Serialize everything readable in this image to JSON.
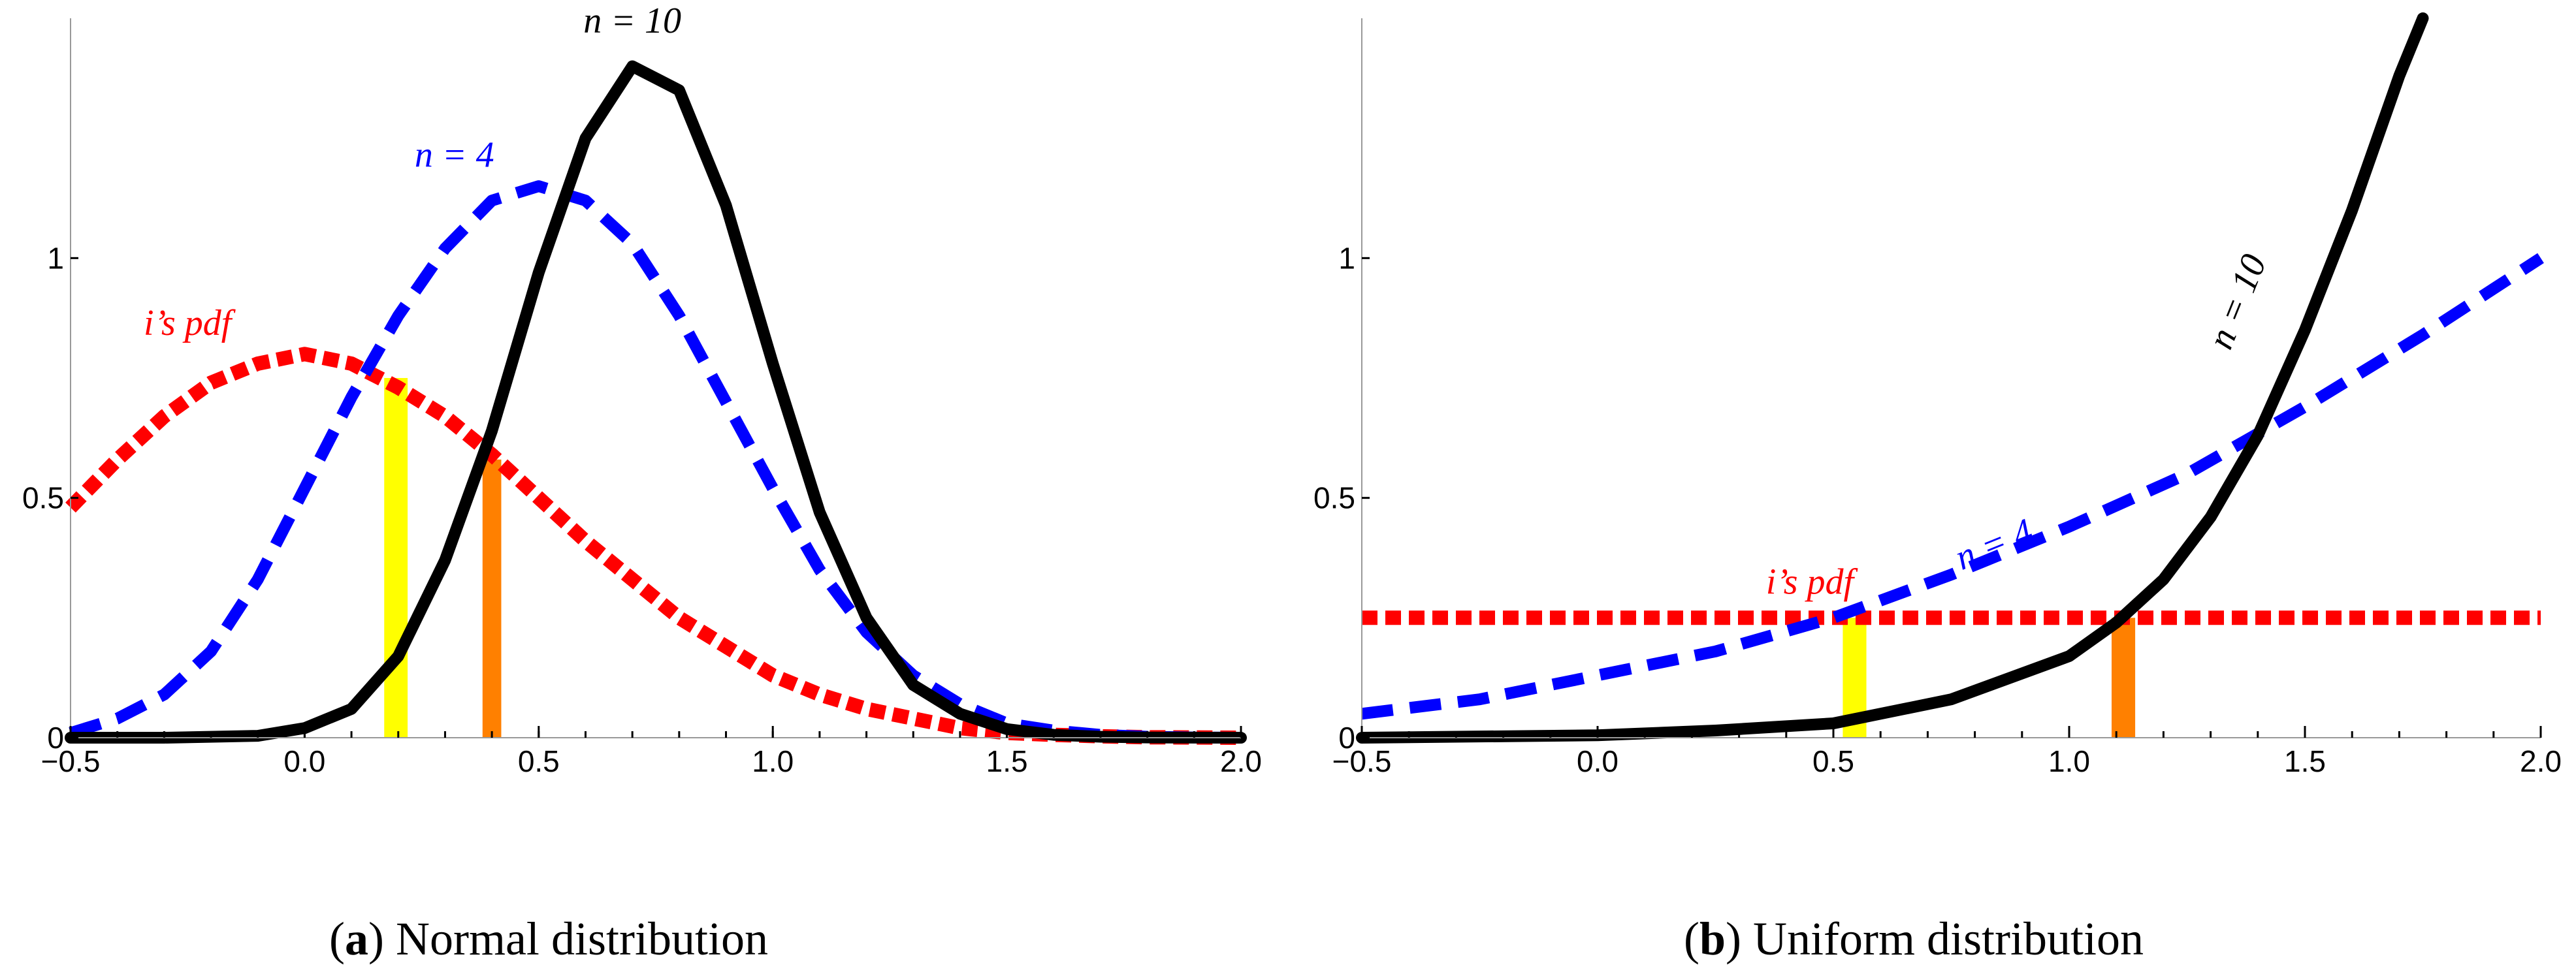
{
  "chart_data": [
    {
      "id": "a",
      "type": "line",
      "caption_letter": "a",
      "caption_text": "Normal distribution",
      "xlim": [
        -0.5,
        2.0
      ],
      "ylim": [
        0,
        1.5
      ],
      "x_ticks": [
        "−0.5",
        "0.0",
        "0.5",
        "1.0",
        "1.5",
        "2.0"
      ],
      "x_tick_values": [
        -0.5,
        0.0,
        0.5,
        1.0,
        1.5,
        2.0
      ],
      "y_ticks": [
        "0",
        "0.5",
        "1"
      ],
      "y_tick_values": [
        0,
        0.5,
        1.0
      ],
      "series": [
        {
          "name": "i’s pdf",
          "label": "i’s pdf",
          "color": "#ff0000",
          "style": "dotted",
          "label_at": [
            -0.25,
            0.84
          ],
          "x": [
            -0.5,
            -0.4,
            -0.3,
            -0.2,
            -0.1,
            0.0,
            0.1,
            0.2,
            0.3,
            0.4,
            0.5,
            0.6,
            0.7,
            0.8,
            0.9,
            1.0,
            1.1,
            1.2,
            1.3,
            1.4,
            1.5,
            1.6,
            1.7,
            1.8,
            1.9,
            2.0
          ],
          "y": [
            0.48,
            0.58,
            0.67,
            0.74,
            0.78,
            0.8,
            0.78,
            0.73,
            0.67,
            0.59,
            0.5,
            0.41,
            0.33,
            0.25,
            0.19,
            0.13,
            0.09,
            0.06,
            0.04,
            0.02,
            0.01,
            0.006,
            0.003,
            0.001,
            0.0005,
            0.0
          ]
        },
        {
          "name": "n = 4",
          "label": "n = 4",
          "color": "#0000ff",
          "style": "dashed",
          "label_at": [
            0.32,
            1.19
          ],
          "x": [
            -0.5,
            -0.4,
            -0.3,
            -0.2,
            -0.1,
            0.0,
            0.1,
            0.2,
            0.3,
            0.4,
            0.5,
            0.6,
            0.7,
            0.8,
            0.9,
            1.0,
            1.1,
            1.2,
            1.3,
            1.4,
            1.5,
            1.6,
            1.7,
            1.8,
            1.9,
            2.0
          ],
          "y": [
            0.01,
            0.04,
            0.09,
            0.18,
            0.33,
            0.52,
            0.71,
            0.88,
            1.02,
            1.12,
            1.15,
            1.12,
            1.03,
            0.88,
            0.7,
            0.52,
            0.35,
            0.22,
            0.13,
            0.07,
            0.03,
            0.015,
            0.006,
            0.002,
            0.0005,
            0.0
          ]
        },
        {
          "name": "n = 10",
          "label": "n = 10",
          "color": "#000000",
          "style": "solid",
          "label_at": [
            0.7,
            1.47
          ],
          "x": [
            -0.5,
            -0.3,
            -0.1,
            0.0,
            0.1,
            0.2,
            0.3,
            0.4,
            0.5,
            0.6,
            0.7,
            0.8,
            0.9,
            1.0,
            1.1,
            1.2,
            1.3,
            1.4,
            1.5,
            1.6,
            1.7,
            1.8,
            1.9,
            2.0
          ],
          "y": [
            0.0,
            0.0,
            0.004,
            0.02,
            0.06,
            0.17,
            0.37,
            0.64,
            0.97,
            1.25,
            1.4,
            1.35,
            1.11,
            0.78,
            0.47,
            0.25,
            0.11,
            0.05,
            0.018,
            0.006,
            0.002,
            0.0005,
            0.0001,
            0.0
          ]
        }
      ],
      "bars": [
        {
          "name": "yellow-bar",
          "color": "#ffff00",
          "x0": 0.17,
          "x1": 0.22,
          "y": 0.75
        },
        {
          "name": "orange-bar",
          "color": "#ff8000",
          "x0": 0.38,
          "x1": 0.42,
          "y": 0.58
        }
      ]
    },
    {
      "id": "b",
      "type": "line",
      "caption_letter": "b",
      "caption_text": "Uniform distribution",
      "xlim": [
        -0.5,
        2.0
      ],
      "ylim": [
        0,
        1.5
      ],
      "x_ticks": [
        "−0.5",
        "0.0",
        "0.5",
        "1.0",
        "1.5",
        "2.0"
      ],
      "x_tick_values": [
        -0.5,
        0.0,
        0.5,
        1.0,
        1.5,
        2.0
      ],
      "y_ticks": [
        "0",
        "0.5",
        "1"
      ],
      "y_tick_values": [
        0,
        0.5,
        1.0
      ],
      "series": [
        {
          "name": "i’s pdf",
          "label": "i’s pdf",
          "color": "#ff0000",
          "style": "dotted",
          "label_at": [
            0.45,
            0.3
          ],
          "x": [
            -0.5,
            2.0
          ],
          "y": [
            0.25,
            0.25
          ]
        },
        {
          "name": "n = 4",
          "label": "n = 4",
          "color": "#0000ff",
          "style": "dashed",
          "label_at": [
            0.85,
            0.38
          ],
          "label_rotate": -22,
          "x": [
            -0.5,
            -0.25,
            0.0,
            0.25,
            0.5,
            0.75,
            1.0,
            1.25,
            1.5,
            1.75,
            2.0
          ],
          "y": [
            0.05,
            0.08,
            0.13,
            0.18,
            0.25,
            0.34,
            0.44,
            0.55,
            0.69,
            0.84,
            1.0
          ]
        },
        {
          "name": "n = 10",
          "label": "n = 10",
          "color": "#000000",
          "style": "solid",
          "label_at": [
            1.38,
            0.9
          ],
          "label_rotate": -68,
          "x": [
            -0.5,
            0.0,
            0.25,
            0.5,
            0.75,
            1.0,
            1.1,
            1.2,
            1.3,
            1.4,
            1.5,
            1.6,
            1.7,
            1.75
          ],
          "y": [
            0.0,
            0.005,
            0.015,
            0.03,
            0.08,
            0.17,
            0.24,
            0.33,
            0.46,
            0.63,
            0.85,
            1.1,
            1.38,
            1.5
          ]
        }
      ],
      "bars": [
        {
          "name": "yellow-bar",
          "color": "#ffff00",
          "x0": 0.52,
          "x1": 0.57,
          "y": 0.25
        },
        {
          "name": "orange-bar",
          "color": "#ff8000",
          "x0": 1.09,
          "x1": 1.14,
          "y": 0.25
        }
      ]
    }
  ]
}
